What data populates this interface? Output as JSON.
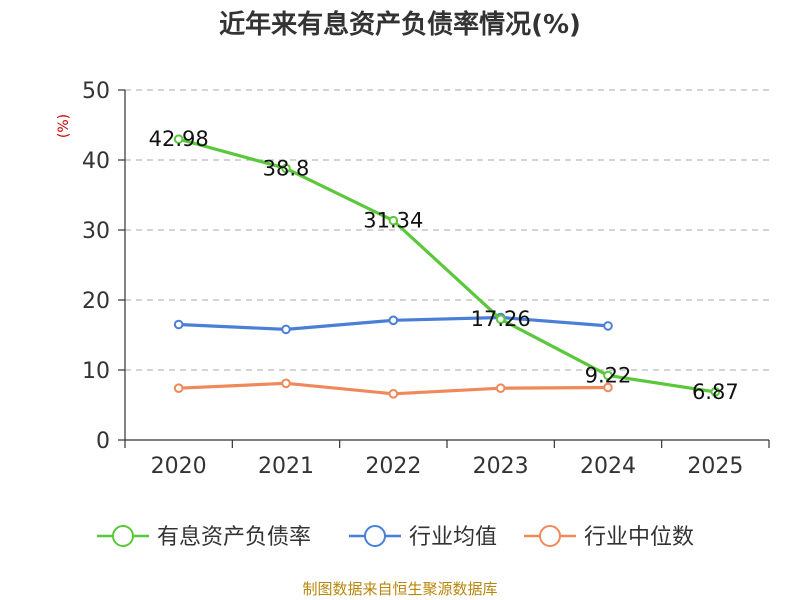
{
  "chart_data": {
    "type": "line",
    "title": "近年来有息资产负债率情况(%)",
    "ylabel": "(%)",
    "xlabel": "",
    "categories": [
      "2020",
      "2021",
      "2022",
      "2023",
      "2024",
      "2025"
    ],
    "ylim": [
      0,
      50
    ],
    "yticks": [
      0,
      10,
      20,
      30,
      40,
      50
    ],
    "grid": true,
    "legend_position": "bottom",
    "series": [
      {
        "name": "有息资产负债率",
        "color": "#5ac83a",
        "values": [
          42.98,
          38.8,
          31.34,
          17.26,
          9.22,
          6.87
        ],
        "labels": [
          "42.98",
          "38.8",
          "31.34",
          "17.26",
          "9.22",
          "6.87"
        ]
      },
      {
        "name": "行业均值",
        "color": "#4a7fd8",
        "values": [
          16.5,
          15.8,
          17.1,
          17.5,
          16.3,
          null
        ]
      },
      {
        "name": "行业中位数",
        "color": "#f0895a",
        "values": [
          7.4,
          8.1,
          6.6,
          7.4,
          7.5,
          null
        ]
      }
    ],
    "source": "制图数据来自恒生聚源数据库"
  }
}
